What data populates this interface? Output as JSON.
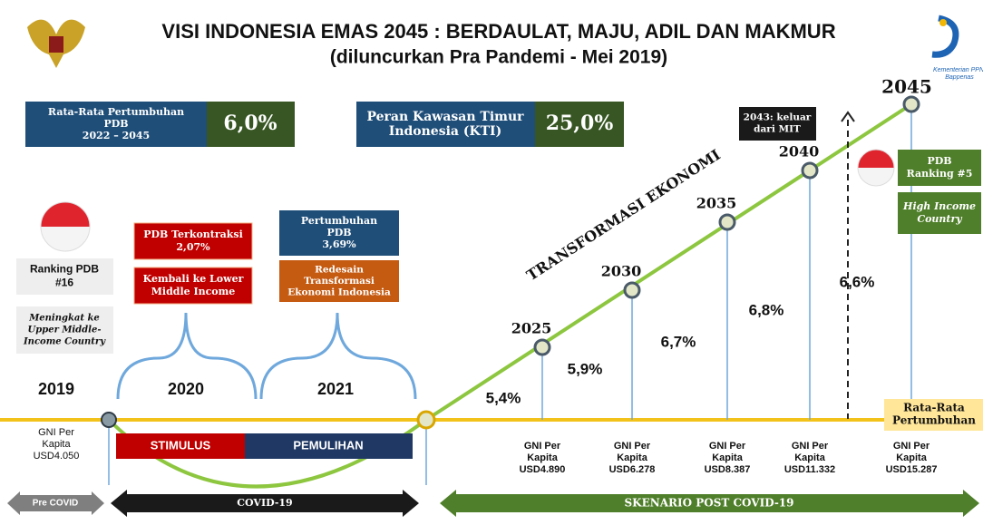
{
  "header": {
    "title": "VISI INDONESIA EMAS 2045 : BERDAULAT, MAJU, ADIL DAN MAKMUR",
    "subtitle": "(diluncurkan Pra Pandemi - Mei 2019)",
    "logo_text": [
      "Kementerian PPN/",
      "Bappenas"
    ]
  },
  "kpis": [
    {
      "label": [
        "Rata-Rata Pertumbuhan",
        "PDB",
        "2022 – 2045"
      ],
      "value": "6,0%"
    },
    {
      "label": [
        "Peran Kawasan Timur",
        "Indonesia (KTI)"
      ],
      "value": "25,0%"
    }
  ],
  "left": {
    "ranking": [
      "Ranking PDB",
      "#16"
    ],
    "status": [
      "Meningkat ke",
      "Upper Middle-",
      "Income Country"
    ],
    "year": "2019",
    "gni": [
      "GNI Per",
      "Kapita",
      "USD4.050"
    ]
  },
  "y2020": {
    "contraction": [
      "PDB Terkontraksi",
      "2,07%"
    ],
    "status": [
      "Kembali ke Lower",
      "Middle Income"
    ],
    "year": "2020"
  },
  "y2021": {
    "growth": [
      "Pertumbuhan",
      "PDB",
      "3,69%"
    ],
    "redesign": [
      "Redesain",
      "Transformasi",
      "Ekonomi Indonesia"
    ],
    "year": "2021"
  },
  "phases": [
    "STIMULUS",
    "PEMULIHAN"
  ],
  "transformation": "TRANSFORMASI EKONOMI",
  "milestones": [
    {
      "year": "2025",
      "growth": "5,4%",
      "gni": [
        "GNI Per",
        "Kapita",
        "USD4.890"
      ]
    },
    {
      "year": "2030",
      "growth": "5,9%",
      "gni": [
        "GNI Per",
        "Kapita",
        "USD6.278"
      ]
    },
    {
      "year": "2035",
      "growth": "6,7%",
      "gni": [
        "GNI Per",
        "Kapita",
        "USD8.387"
      ]
    },
    {
      "year": "2040",
      "growth": "6,8%",
      "gni": [
        "GNI Per",
        "Kapita",
        "USD11.332"
      ]
    },
    {
      "year": "2045",
      "growth": "6,6%",
      "gni": [
        "GNI Per",
        "Kapita",
        "USD15.287"
      ]
    }
  ],
  "mit_exit": [
    "2043: keluar",
    "dari MIT"
  ],
  "right": {
    "ranking": [
      "PDB",
      "Ranking #5"
    ],
    "income": [
      "High Income",
      "Country"
    ],
    "avg_growth": [
      "Rata-Rata",
      "Pertumbuhan"
    ]
  },
  "timeline": [
    "Pre COVID",
    "COVID-19",
    "SKENARIO POST COVID-19"
  ]
}
